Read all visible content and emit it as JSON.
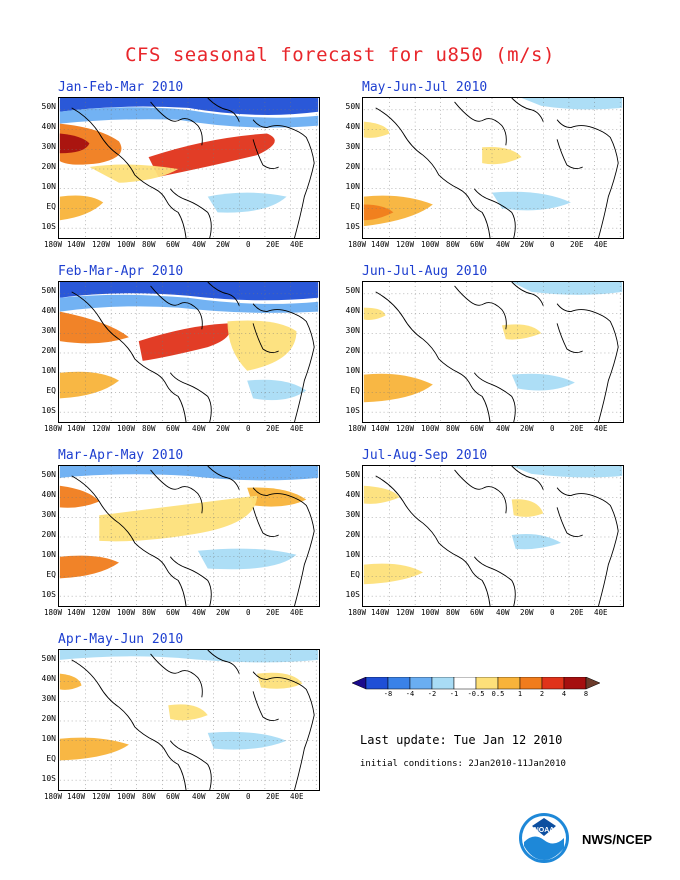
{
  "title": "CFS seasonal forecast for u850 (m/s)",
  "y_labels": [
    "50N",
    "40N",
    "30N",
    "20N",
    "10N",
    "EQ",
    "10S"
  ],
  "x_labels": [
    "180W",
    "140W",
    "120W",
    "100W",
    "80W",
    "60W",
    "40W",
    "20W",
    "0",
    "20E",
    "40E"
  ],
  "panels": [
    {
      "title": "Jan-Feb-Mar 2010"
    },
    {
      "title": "May-Jun-Jul 2010"
    },
    {
      "title": "Feb-Mar-Apr 2010"
    },
    {
      "title": "Jun-Jul-Aug 2010"
    },
    {
      "title": "Mar-Apr-May 2010"
    },
    {
      "title": "Jul-Aug-Sep 2010"
    },
    {
      "title": "Apr-May-Jun 2010"
    }
  ],
  "colorbar": {
    "labels": [
      "-8",
      "-4",
      "-2",
      "-1",
      "-0.5",
      "0.5",
      "1",
      "2",
      "4",
      "8"
    ],
    "colors": [
      "#1a0b8c",
      "#1f4fd6",
      "#3a82e8",
      "#6aaef2",
      "#a9dcf5",
      "#ffffff",
      "#fde07a",
      "#f8b33a",
      "#f07c1c",
      "#e0331a",
      "#a50f0f",
      "#6b3a2a"
    ]
  },
  "last_update": "Last update: Tue Jan 12 2010",
  "initial_conditions": "initial conditions: 2Jan2010-11Jan2010",
  "agency": "NWS/NCEP"
}
